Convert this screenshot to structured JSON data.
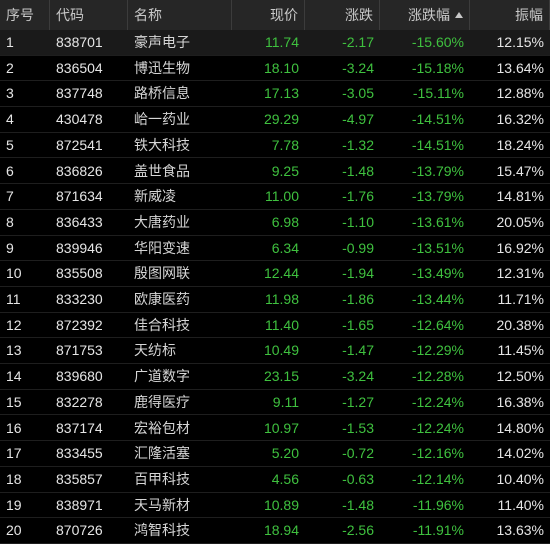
{
  "table": {
    "columns": [
      "序号",
      "代码",
      "名称",
      "现价",
      "涨跌",
      "涨跌幅",
      "振幅"
    ],
    "rows": [
      [
        "1",
        "838701",
        "豪声电子",
        "11.74",
        "-2.17",
        "-15.60%",
        "12.15%"
      ],
      [
        "2",
        "836504",
        "博迅生物",
        "18.10",
        "-3.24",
        "-15.18%",
        "13.64%"
      ],
      [
        "3",
        "837748",
        "路桥信息",
        "17.13",
        "-3.05",
        "-15.11%",
        "12.88%"
      ],
      [
        "4",
        "430478",
        "峆一药业",
        "29.29",
        "-4.97",
        "-14.51%",
        "16.32%"
      ],
      [
        "5",
        "872541",
        "铁大科技",
        "7.78",
        "-1.32",
        "-14.51%",
        "18.24%"
      ],
      [
        "6",
        "836826",
        "盖世食品",
        "9.25",
        "-1.48",
        "-13.79%",
        "15.47%"
      ],
      [
        "7",
        "871634",
        "新威凌",
        "11.00",
        "-1.76",
        "-13.79%",
        "14.81%"
      ],
      [
        "8",
        "836433",
        "大唐药业",
        "6.98",
        "-1.10",
        "-13.61%",
        "20.05%"
      ],
      [
        "9",
        "839946",
        "华阳变速",
        "6.34",
        "-0.99",
        "-13.51%",
        "16.92%"
      ],
      [
        "10",
        "835508",
        "殷图网联",
        "12.44",
        "-1.94",
        "-13.49%",
        "12.31%"
      ],
      [
        "11",
        "833230",
        "欧康医药",
        "11.98",
        "-1.86",
        "-13.44%",
        "11.71%"
      ],
      [
        "12",
        "872392",
        "佳合科技",
        "11.40",
        "-1.65",
        "-12.64%",
        "20.38%"
      ],
      [
        "13",
        "871753",
        "天纺标",
        "10.49",
        "-1.47",
        "-12.29%",
        "11.45%"
      ],
      [
        "14",
        "839680",
        "广道数字",
        "23.15",
        "-3.24",
        "-12.28%",
        "12.50%"
      ],
      [
        "15",
        "832278",
        "鹿得医疗",
        "9.11",
        "-1.27",
        "-12.24%",
        "16.38%"
      ],
      [
        "16",
        "837174",
        "宏裕包材",
        "10.97",
        "-1.53",
        "-12.24%",
        "14.80%"
      ],
      [
        "17",
        "833455",
        "汇隆活塞",
        "5.20",
        "-0.72",
        "-12.16%",
        "14.02%"
      ],
      [
        "18",
        "835857",
        "百甲科技",
        "4.56",
        "-0.63",
        "-12.14%",
        "10.40%"
      ],
      [
        "19",
        "838971",
        "天马新材",
        "10.89",
        "-1.48",
        "-11.96%",
        "11.40%"
      ],
      [
        "20",
        "870726",
        "鸿智科技",
        "18.94",
        "-2.56",
        "-11.91%",
        "13.63%"
      ]
    ]
  }
}
